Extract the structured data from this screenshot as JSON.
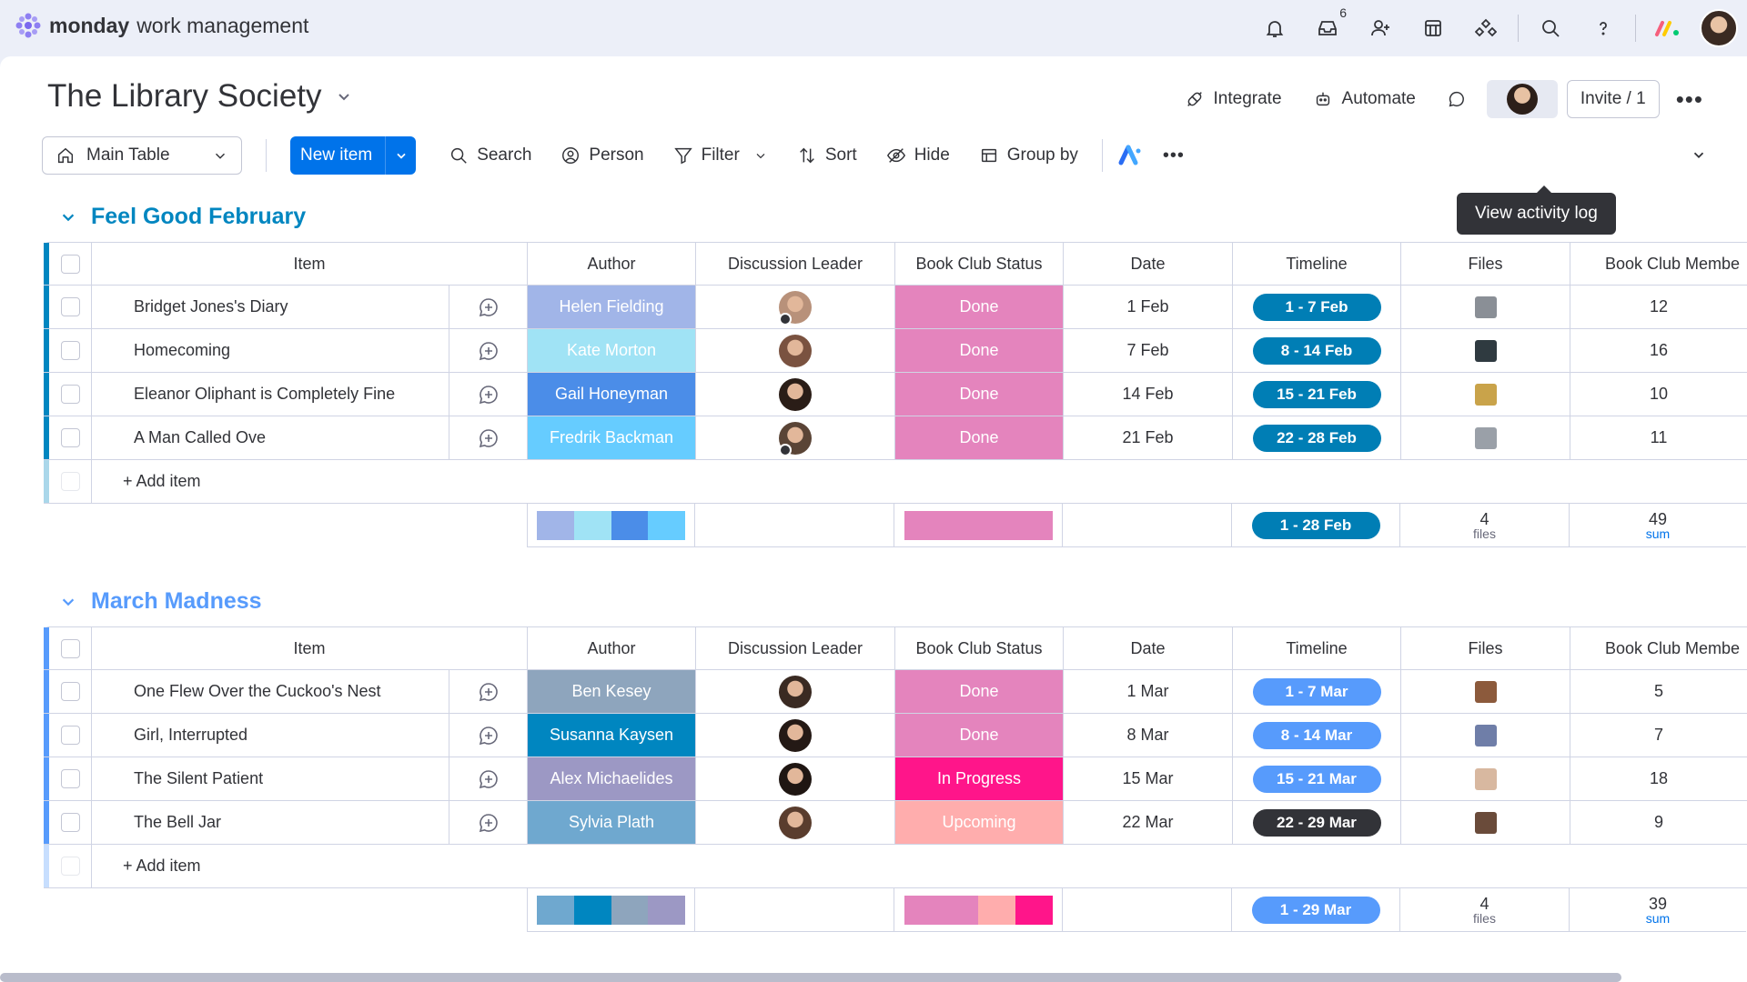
{
  "app": {
    "logo_bold": "monday",
    "logo_light": "work management",
    "inbox_badge": "6"
  },
  "board": {
    "title": "The Library Society",
    "actions": {
      "integrate": "Integrate",
      "automate": "Automate",
      "invite": "Invite / 1",
      "more": "•••"
    },
    "tooltip": "View activity log"
  },
  "toolbar": {
    "view": "Main Table",
    "new_item": "New item",
    "search": "Search",
    "person": "Person",
    "filter": "Filter",
    "sort": "Sort",
    "hide": "Hide",
    "group_by": "Group by",
    "more": "•••"
  },
  "columns": {
    "item": "Item",
    "author": "Author",
    "lead": "Discussion Leader",
    "status": "Book Club Status",
    "date": "Date",
    "timeline": "Timeline",
    "files": "Files",
    "members": "Book Club Membe"
  },
  "colors": {
    "accent": "#0073ea",
    "feb_group": "#037f9e",
    "mar_group": "#579bfc",
    "done": "#e484bd",
    "in_progress": "#ff158a",
    "upcoming": "#ffadad"
  },
  "groups": [
    {
      "title": "Feel Good February",
      "color": "#0086c0",
      "add_item": "+ Add item",
      "rows": [
        {
          "item": "Bridget Jones's Diary",
          "author": "Helen Fielding",
          "author_color": "#a1b5e8",
          "status": "Done",
          "status_color": "#e484bd",
          "date": "1 Feb",
          "timeline": "1 - 7 Feb",
          "timeline_color": "#007eb5",
          "members": "12",
          "thumb_color": "#8a8f96",
          "avatar_color": "#b8917a",
          "owner": true
        },
        {
          "item": "Homecoming",
          "author": "Kate Morton",
          "author_color": "#a0e3f5",
          "status": "Done",
          "status_color": "#e484bd",
          "date": "7 Feb",
          "timeline": "8 - 14 Feb",
          "timeline_color": "#007eb5",
          "members": "16",
          "thumb_color": "#2f3a40",
          "avatar_color": "#7a5240",
          "owner": false
        },
        {
          "item": "Eleanor Oliphant is Completely Fine",
          "author": "Gail Honeyman",
          "author_color": "#4b8de8",
          "status": "Done",
          "status_color": "#e484bd",
          "date": "14 Feb",
          "timeline": "15 - 21 Feb",
          "timeline_color": "#007eb5",
          "members": "10",
          "thumb_color": "#c9a34a",
          "avatar_color": "#2a1d17",
          "owner": false
        },
        {
          "item": "A Man Called Ove",
          "author": "Fredrik Backman",
          "author_color": "#66ccff",
          "status": "Done",
          "status_color": "#e484bd",
          "date": "21 Feb",
          "timeline": "22 - 28 Feb",
          "timeline_color": "#007eb5",
          "members": "11",
          "thumb_color": "#9aa0a8",
          "avatar_color": "#5a4436",
          "owner": true
        }
      ],
      "summary": {
        "author_bars": [
          "#a1b5e8",
          "#a0e3f5",
          "#4b8de8",
          "#66ccff"
        ],
        "status_bars": [
          "#e484bd"
        ],
        "timeline": "1 - 28 Feb",
        "timeline_color": "#007eb5",
        "files_count": "4",
        "files_unit": "files",
        "members_sum": "49",
        "members_unit": "sum"
      }
    },
    {
      "title": "March Madness",
      "color": "#579bfc",
      "add_item": "+ Add item",
      "rows": [
        {
          "item": "One Flew Over the Cuckoo's Nest",
          "author": "Ben Kesey",
          "author_color": "#8ea5bd",
          "status": "Done",
          "status_color": "#e484bd",
          "date": "1 Mar",
          "timeline": "1 - 7 Mar",
          "timeline_color": "#579bfc",
          "members": "5",
          "thumb_color": "#8c5a3c",
          "avatar_color": "#3a2a22",
          "owner": false
        },
        {
          "item": "Girl, Interrupted",
          "author": "Susanna Kaysen",
          "author_color": "#0086c0",
          "status": "Done",
          "status_color": "#e484bd",
          "date": "8 Mar",
          "timeline": "8 - 14 Mar",
          "timeline_color": "#579bfc",
          "members": "7",
          "thumb_color": "#6f7ea8",
          "avatar_color": "#241915",
          "owner": false
        },
        {
          "item": "The Silent Patient",
          "author": "Alex Michaelides",
          "author_color": "#9c98c4",
          "status": "In Progress",
          "status_color": "#ff158a",
          "date": "15 Mar",
          "timeline": "15 - 21 Mar",
          "timeline_color": "#579bfc",
          "members": "18",
          "thumb_color": "#d8b8a0",
          "avatar_color": "#1f1612",
          "owner": false
        },
        {
          "item": "The Bell Jar",
          "author": "Sylvia Plath",
          "author_color": "#6fa8cf",
          "status": "Upcoming",
          "status_color": "#ffadad",
          "date": "22 Mar",
          "timeline": "22 - 29 Mar",
          "timeline_color": "#323338",
          "members": "9",
          "thumb_color": "#6a4b3a",
          "avatar_color": "#5a3d2e",
          "owner": false
        }
      ],
      "summary": {
        "author_bars": [
          "#6fa8cf",
          "#0086c0",
          "#8ea5bd",
          "#9c98c4"
        ],
        "status_bars": [
          "#e484bd",
          "#e484bd",
          "#ffadad",
          "#ff158a"
        ],
        "timeline": "1 - 29 Mar",
        "timeline_color": "#579bfc",
        "files_count": "4",
        "files_unit": "files",
        "members_sum": "39",
        "members_unit": "sum"
      }
    }
  ]
}
